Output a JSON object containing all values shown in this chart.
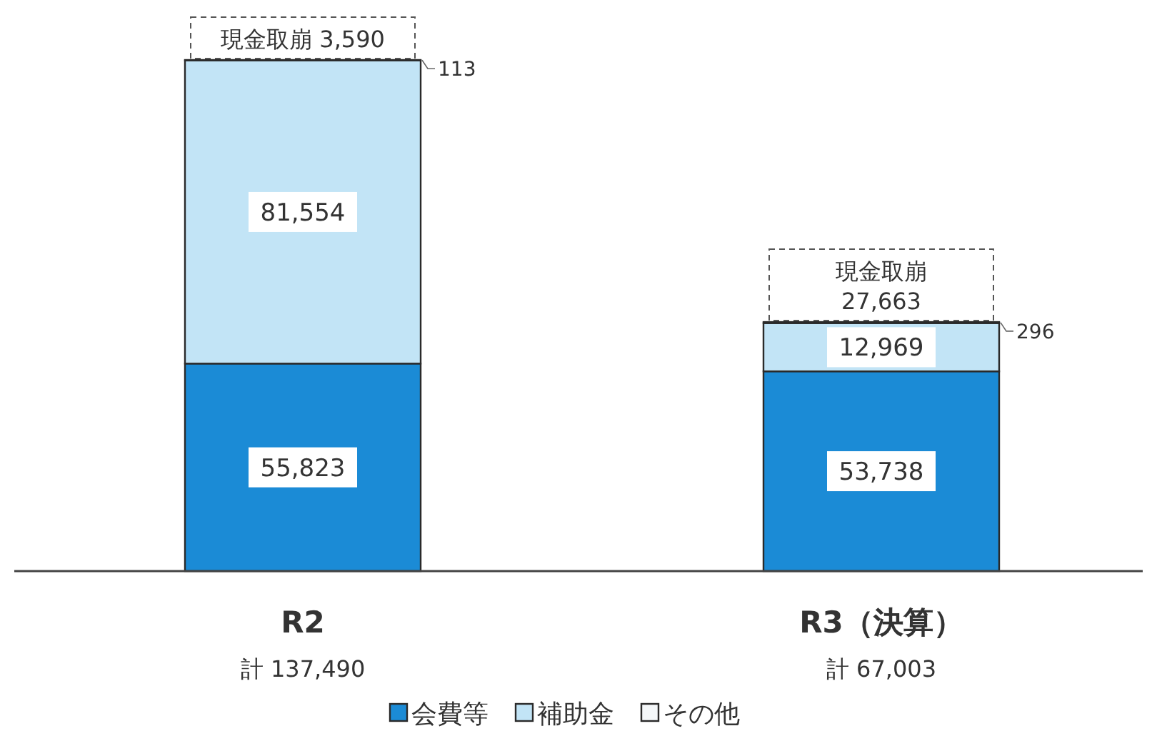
{
  "chart_data": {
    "type": "bar",
    "stacked": true,
    "categories": [
      "R2",
      "R3（決算）"
    ],
    "series": [
      {
        "name": "会費等",
        "color": "#1b8bd6",
        "values": [
          55823,
          53738
        ],
        "value_labels": [
          "55,823",
          "53,738"
        ]
      },
      {
        "name": "補助金",
        "color": "#c2e4f6",
        "values": [
          81554,
          12969
        ],
        "value_labels": [
          "81,554",
          "12,969"
        ]
      },
      {
        "name": "その他",
        "color": "#f4f7f9",
        "values": [
          113,
          296
        ],
        "value_labels": [
          "113",
          "296"
        ]
      }
    ],
    "annotations": [
      "計 137,490",
      "計 67,003",
      {
        "text": "現金取崩 3,590",
        "x": "R2",
        "y": 137490
      },
      {
        "text": "現金取崩\n27,663",
        "x": "R3（決算）",
        "y": 67003
      }
    ],
    "legend": "bottom"
  }
}
